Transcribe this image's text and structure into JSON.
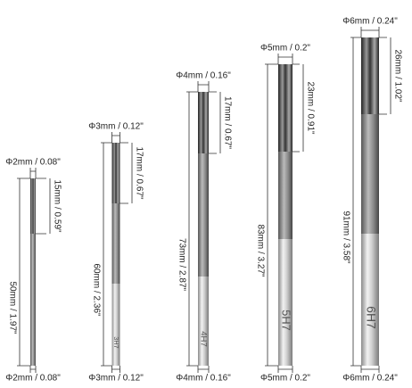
{
  "tools": [
    {
      "top_diameter": "Φ2mm / 0.08\"",
      "flute_length": "15mm / 0.59\"",
      "overall_length": "50mm / 1.97\"",
      "bottom_diameter": "Φ2mm / 0.08\""
    },
    {
      "top_diameter": "Φ3mm / 0.12\"",
      "flute_length": "17mm / 0.67\"",
      "overall_length": "60mm / 2.36\"",
      "marking": "3H7",
      "bottom_diameter": "Φ3mm / 0.12\""
    },
    {
      "top_diameter": "Φ4mm / 0.16\"",
      "flute_length": "17mm / 0.67\"",
      "overall_length": "73mm / 2.87\"",
      "marking": "4H7",
      "bottom_diameter": "Φ4mm / 0.16\""
    },
    {
      "top_diameter": "Φ5mm / 0.2\"",
      "flute_length": "23mm / 0.91\"",
      "overall_length": "83mm / 3.27\"",
      "marking": "5H7",
      "bottom_diameter": "Φ5mm / 0.2\""
    },
    {
      "top_diameter": "Φ6mm / 0.24\"",
      "flute_length": "26mm / 1.02\"",
      "overall_length": "91mm / 3.58\"",
      "marking": "6H7",
      "bottom_diameter": "Φ6mm / 0.24\""
    }
  ]
}
